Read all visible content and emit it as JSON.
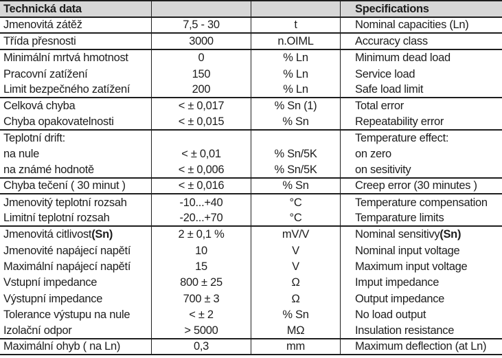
{
  "table": {
    "colors": {
      "header_bg": "#d7d7d7",
      "line": "#1d1d1d",
      "text": "#1d1d1d"
    },
    "header": {
      "czech_title": "Technická data",
      "specs_title": "Specifications"
    },
    "rows": [
      {
        "cs": "Jmenovitá zátěž",
        "val": "7,5 - 30",
        "unit": "t",
        "en": "Nominal capacities (Ln)",
        "sep": true
      },
      {
        "cs": "Třída přesnosti",
        "val": "3000",
        "unit": "n.OIML",
        "en": "Accuracy class",
        "sep": true
      },
      {
        "cs": "Minimální mrtvá hmotnost",
        "val": "0",
        "unit": "% Ln",
        "en": "Minimum dead load",
        "sep": false
      },
      {
        "cs": "Pracovní zatížení",
        "val": "150",
        "unit": "% Ln",
        "en": "Service load",
        "sep": false
      },
      {
        "cs": "Limit bezpečného zatížení",
        "val": "200",
        "unit": "% Ln",
        "en": "Safe load limit",
        "sep": true
      },
      {
        "cs": "Celková chyba",
        "val": "< ± 0,017",
        "unit": "% Sn (1)",
        "en": "Total error",
        "sep": false
      },
      {
        "cs": "Chyba opakovatelnosti",
        "val": "< ± 0,015",
        "unit": "% Sn",
        "en": "Repeatability error",
        "sep": true
      },
      {
        "cs": "Teplotní drift:",
        "val": "",
        "unit": "",
        "en": "Temperature effect:",
        "sep": false
      },
      {
        "cs": "na nule",
        "val": "< ± 0,01",
        "unit": "% Sn/5K",
        "en": "on zero",
        "sep": false
      },
      {
        "cs": "na známé hodnotě",
        "val": "< ± 0,006",
        "unit": "% Sn/5K",
        "en": "on sesitivity",
        "sep": true
      },
      {
        "cs": "Chyba tečení ( 30 minut )",
        "val": "< ± 0,016",
        "unit": "% Sn",
        "en": "Creep error (30 minutes )",
        "sep": true
      },
      {
        "cs": "Jmenovitý teplotní rozsah",
        "val": "-10...+40",
        "unit": "°C",
        "en": "Temperature compensation",
        "sep": false
      },
      {
        "cs": "Limitní teplotní rozsah",
        "val": "-20...+70",
        "unit": "°C",
        "en": "Temparature limits",
        "sep": true
      },
      {
        "cs": "Jmenovitá citlivost ",
        "cs_bold": "(Sn)",
        "val": "2 ± 0,1 %",
        "unit": "mV/V",
        "en": "Nominal sensitivy ",
        "en_bold": "(Sn)",
        "sep": false
      },
      {
        "cs": "Jmenovité napájecí napětí",
        "val": "10",
        "unit": "V",
        "en": "Nominal input voltage",
        "sep": false
      },
      {
        "cs": "Maximální napájecí napětí",
        "val": "15",
        "unit": "V",
        "en": "Maximum input voltage",
        "sep": false
      },
      {
        "cs": "Vstupní impedance",
        "val": "800 ± 25",
        "unit": "Ω",
        "en": "Imput impedance",
        "sep": false
      },
      {
        "cs": "Výstupní impedance",
        "val": "700 ± 3",
        "unit": "Ω",
        "en": "Output impedance",
        "sep": false
      },
      {
        "cs": "Tolerance výstupu na nule",
        "val": "< ± 2",
        "unit": "% Sn",
        "en": "No load output",
        "sep": false
      },
      {
        "cs": "Izolační odpor",
        "val": "> 5000",
        "unit": "MΩ",
        "en": "Insulation resistance",
        "sep": true
      },
      {
        "cs": "Maximální ohyb ( na Ln)",
        "val": "0,3",
        "unit": "mm",
        "en": "Maximum deflection (at Ln)",
        "sep": true
      }
    ]
  }
}
